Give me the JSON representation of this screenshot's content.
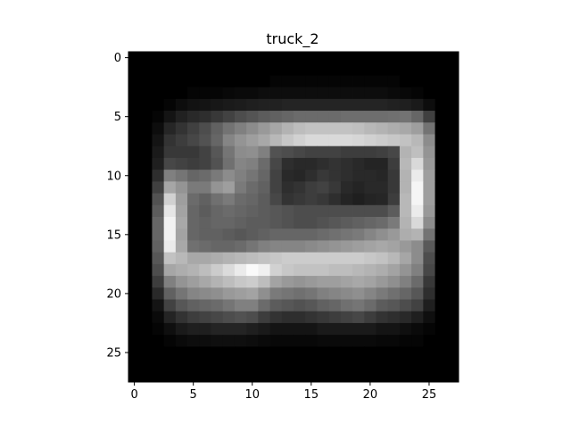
{
  "chart_data": {
    "type": "heatmap",
    "title": "truck_2",
    "xlabel": "",
    "ylabel": "",
    "colormap": "gray",
    "rows": 28,
    "cols": 28,
    "xlim": [
      -0.5,
      27.5
    ],
    "ylim": [
      27.5,
      -0.5
    ],
    "xticks": [
      0,
      5,
      10,
      15,
      20,
      25
    ],
    "yticks": [
      0,
      5,
      10,
      15,
      20,
      25
    ],
    "grid": false,
    "legend": "none",
    "value_range": [
      0,
      1
    ],
    "data": [
      [
        0.0,
        0.0,
        0.0,
        0.0,
        0.0,
        0.0,
        0.0,
        0.0,
        0.0,
        0.0,
        0.0,
        0.0,
        0.0,
        0.0,
        0.0,
        0.0,
        0.0,
        0.0,
        0.0,
        0.0,
        0.0,
        0.0,
        0.0,
        0.0,
        0.0,
        0.0,
        0.0,
        0.0
      ],
      [
        0.0,
        0.0,
        0.0,
        0.0,
        0.0,
        0.0,
        0.0,
        0.0,
        0.0,
        0.0,
        0.0,
        0.0,
        0.0,
        0.0,
        0.0,
        0.0,
        0.0,
        0.0,
        0.0,
        0.0,
        0.0,
        0.0,
        0.0,
        0.0,
        0.0,
        0.0,
        0.0,
        0.0
      ],
      [
        0.0,
        0.0,
        0.0,
        0.0,
        0.0,
        0.0,
        0.0,
        0.0,
        0.0,
        0.0,
        0.0,
        0.0,
        0.02,
        0.02,
        0.02,
        0.02,
        0.02,
        0.02,
        0.02,
        0.02,
        0.02,
        0.02,
        0.02,
        0.0,
        0.0,
        0.0,
        0.0,
        0.0
      ],
      [
        0.0,
        0.0,
        0.0,
        0.0,
        0.0,
        0.02,
        0.02,
        0.02,
        0.03,
        0.04,
        0.04,
        0.05,
        0.05,
        0.05,
        0.05,
        0.05,
        0.05,
        0.05,
        0.05,
        0.05,
        0.05,
        0.05,
        0.04,
        0.03,
        0.02,
        0.0,
        0.0,
        0.0
      ],
      [
        0.0,
        0.0,
        0.0,
        0.02,
        0.05,
        0.07,
        0.08,
        0.09,
        0.1,
        0.11,
        0.12,
        0.13,
        0.13,
        0.14,
        0.14,
        0.14,
        0.14,
        0.14,
        0.14,
        0.14,
        0.14,
        0.14,
        0.13,
        0.12,
        0.1,
        0.05,
        0.0,
        0.0
      ],
      [
        0.0,
        0.0,
        0.02,
        0.08,
        0.13,
        0.16,
        0.18,
        0.22,
        0.26,
        0.3,
        0.33,
        0.36,
        0.38,
        0.4,
        0.42,
        0.42,
        0.42,
        0.42,
        0.43,
        0.43,
        0.43,
        0.43,
        0.44,
        0.45,
        0.4,
        0.25,
        0.0,
        0.0
      ],
      [
        0.0,
        0.0,
        0.05,
        0.15,
        0.2,
        0.25,
        0.3,
        0.38,
        0.45,
        0.5,
        0.55,
        0.6,
        0.65,
        0.7,
        0.74,
        0.76,
        0.76,
        0.76,
        0.76,
        0.75,
        0.72,
        0.7,
        0.68,
        0.66,
        0.62,
        0.45,
        0.0,
        0.0
      ],
      [
        0.0,
        0.0,
        0.08,
        0.2,
        0.24,
        0.28,
        0.32,
        0.4,
        0.52,
        0.58,
        0.62,
        0.66,
        0.72,
        0.78,
        0.82,
        0.85,
        0.85,
        0.85,
        0.85,
        0.84,
        0.82,
        0.8,
        0.78,
        0.76,
        0.72,
        0.55,
        0.0,
        0.0
      ],
      [
        0.0,
        0.0,
        0.1,
        0.22,
        0.22,
        0.22,
        0.26,
        0.34,
        0.46,
        0.55,
        0.56,
        0.5,
        0.32,
        0.3,
        0.28,
        0.26,
        0.26,
        0.26,
        0.24,
        0.24,
        0.24,
        0.25,
        0.28,
        0.7,
        0.75,
        0.58,
        0.0,
        0.0
      ],
      [
        0.0,
        0.0,
        0.12,
        0.28,
        0.26,
        0.24,
        0.26,
        0.32,
        0.44,
        0.52,
        0.5,
        0.42,
        0.28,
        0.18,
        0.16,
        0.16,
        0.18,
        0.2,
        0.18,
        0.16,
        0.14,
        0.14,
        0.24,
        0.72,
        0.85,
        0.6,
        0.0,
        0.0
      ],
      [
        0.0,
        0.0,
        0.18,
        0.5,
        0.46,
        0.4,
        0.42,
        0.48,
        0.55,
        0.5,
        0.46,
        0.4,
        0.26,
        0.16,
        0.15,
        0.18,
        0.22,
        0.2,
        0.18,
        0.16,
        0.16,
        0.15,
        0.22,
        0.7,
        0.92,
        0.62,
        0.0,
        0.0
      ],
      [
        0.0,
        0.0,
        0.25,
        0.65,
        0.58,
        0.48,
        0.48,
        0.58,
        0.62,
        0.48,
        0.42,
        0.38,
        0.26,
        0.18,
        0.2,
        0.24,
        0.26,
        0.22,
        0.16,
        0.14,
        0.16,
        0.16,
        0.22,
        0.7,
        0.96,
        0.62,
        0.0,
        0.0
      ],
      [
        0.0,
        0.0,
        0.32,
        0.82,
        0.62,
        0.42,
        0.38,
        0.44,
        0.48,
        0.42,
        0.4,
        0.36,
        0.28,
        0.2,
        0.22,
        0.24,
        0.22,
        0.18,
        0.14,
        0.12,
        0.14,
        0.15,
        0.24,
        0.72,
        0.96,
        0.62,
        0.0,
        0.0
      ],
      [
        0.0,
        0.0,
        0.36,
        0.9,
        0.64,
        0.4,
        0.36,
        0.4,
        0.42,
        0.4,
        0.38,
        0.36,
        0.34,
        0.32,
        0.3,
        0.3,
        0.3,
        0.3,
        0.3,
        0.3,
        0.3,
        0.3,
        0.36,
        0.72,
        0.92,
        0.6,
        0.0,
        0.0
      ],
      [
        0.0,
        0.0,
        0.4,
        0.95,
        0.66,
        0.4,
        0.38,
        0.4,
        0.4,
        0.38,
        0.36,
        0.36,
        0.34,
        0.32,
        0.3,
        0.3,
        0.32,
        0.34,
        0.36,
        0.38,
        0.4,
        0.42,
        0.48,
        0.7,
        0.85,
        0.55,
        0.0,
        0.0
      ],
      [
        0.0,
        0.0,
        0.4,
        0.95,
        0.64,
        0.4,
        0.38,
        0.38,
        0.36,
        0.34,
        0.36,
        0.38,
        0.4,
        0.4,
        0.4,
        0.4,
        0.42,
        0.44,
        0.46,
        0.48,
        0.52,
        0.56,
        0.6,
        0.68,
        0.7,
        0.45,
        0.0,
        0.0
      ],
      [
        0.0,
        0.0,
        0.38,
        0.92,
        0.66,
        0.44,
        0.42,
        0.4,
        0.4,
        0.42,
        0.46,
        0.5,
        0.52,
        0.52,
        0.52,
        0.54,
        0.56,
        0.58,
        0.6,
        0.62,
        0.64,
        0.66,
        0.64,
        0.6,
        0.55,
        0.35,
        0.0,
        0.0
      ],
      [
        0.0,
        0.0,
        0.34,
        0.76,
        0.72,
        0.66,
        0.66,
        0.68,
        0.7,
        0.72,
        0.74,
        0.76,
        0.78,
        0.8,
        0.8,
        0.8,
        0.8,
        0.8,
        0.8,
        0.8,
        0.78,
        0.76,
        0.72,
        0.65,
        0.55,
        0.3,
        0.0,
        0.0
      ],
      [
        0.0,
        0.0,
        0.3,
        0.65,
        0.68,
        0.7,
        0.74,
        0.8,
        0.86,
        0.92,
        0.98,
        0.94,
        0.82,
        0.78,
        0.76,
        0.76,
        0.76,
        0.74,
        0.74,
        0.72,
        0.7,
        0.68,
        0.64,
        0.58,
        0.5,
        0.28,
        0.0,
        0.0
      ],
      [
        0.0,
        0.0,
        0.24,
        0.5,
        0.58,
        0.62,
        0.66,
        0.7,
        0.74,
        0.78,
        0.8,
        0.74,
        0.64,
        0.6,
        0.58,
        0.6,
        0.62,
        0.62,
        0.64,
        0.66,
        0.64,
        0.6,
        0.56,
        0.5,
        0.42,
        0.22,
        0.0,
        0.0
      ],
      [
        0.0,
        0.0,
        0.16,
        0.38,
        0.46,
        0.52,
        0.54,
        0.56,
        0.6,
        0.62,
        0.64,
        0.56,
        0.48,
        0.46,
        0.44,
        0.46,
        0.5,
        0.52,
        0.54,
        0.56,
        0.52,
        0.48,
        0.44,
        0.4,
        0.34,
        0.18,
        0.0,
        0.0
      ],
      [
        0.0,
        0.0,
        0.08,
        0.26,
        0.34,
        0.38,
        0.4,
        0.42,
        0.46,
        0.5,
        0.5,
        0.42,
        0.36,
        0.34,
        0.32,
        0.34,
        0.38,
        0.4,
        0.44,
        0.46,
        0.42,
        0.36,
        0.34,
        0.3,
        0.26,
        0.12,
        0.0,
        0.0
      ],
      [
        0.0,
        0.0,
        0.04,
        0.14,
        0.2,
        0.24,
        0.26,
        0.28,
        0.3,
        0.32,
        0.3,
        0.24,
        0.2,
        0.18,
        0.18,
        0.2,
        0.22,
        0.24,
        0.26,
        0.28,
        0.24,
        0.2,
        0.18,
        0.16,
        0.12,
        0.06,
        0.0,
        0.0
      ],
      [
        0.0,
        0.0,
        0.02,
        0.06,
        0.1,
        0.12,
        0.12,
        0.14,
        0.14,
        0.14,
        0.12,
        0.1,
        0.08,
        0.08,
        0.08,
        0.08,
        0.1,
        0.1,
        0.1,
        0.1,
        0.1,
        0.08,
        0.08,
        0.06,
        0.04,
        0.02,
        0.0,
        0.0
      ],
      [
        0.0,
        0.0,
        0.0,
        0.02,
        0.04,
        0.05,
        0.05,
        0.06,
        0.06,
        0.06,
        0.05,
        0.04,
        0.03,
        0.03,
        0.03,
        0.03,
        0.04,
        0.04,
        0.04,
        0.04,
        0.04,
        0.03,
        0.03,
        0.02,
        0.02,
        0.0,
        0.0,
        0.0
      ],
      [
        0.0,
        0.0,
        0.0,
        0.0,
        0.0,
        0.0,
        0.0,
        0.0,
        0.0,
        0.0,
        0.0,
        0.0,
        0.0,
        0.0,
        0.0,
        0.0,
        0.0,
        0.0,
        0.0,
        0.0,
        0.0,
        0.0,
        0.0,
        0.0,
        0.0,
        0.0,
        0.0,
        0.0
      ],
      [
        0.0,
        0.0,
        0.0,
        0.0,
        0.0,
        0.0,
        0.0,
        0.0,
        0.0,
        0.0,
        0.0,
        0.0,
        0.0,
        0.0,
        0.0,
        0.0,
        0.0,
        0.0,
        0.0,
        0.0,
        0.0,
        0.0,
        0.0,
        0.0,
        0.0,
        0.0,
        0.0,
        0.0
      ],
      [
        0.0,
        0.0,
        0.0,
        0.0,
        0.0,
        0.0,
        0.0,
        0.0,
        0.0,
        0.0,
        0.0,
        0.0,
        0.0,
        0.0,
        0.0,
        0.0,
        0.0,
        0.0,
        0.0,
        0.0,
        0.0,
        0.0,
        0.0,
        0.0,
        0.0,
        0.0,
        0.0,
        0.0
      ]
    ]
  }
}
